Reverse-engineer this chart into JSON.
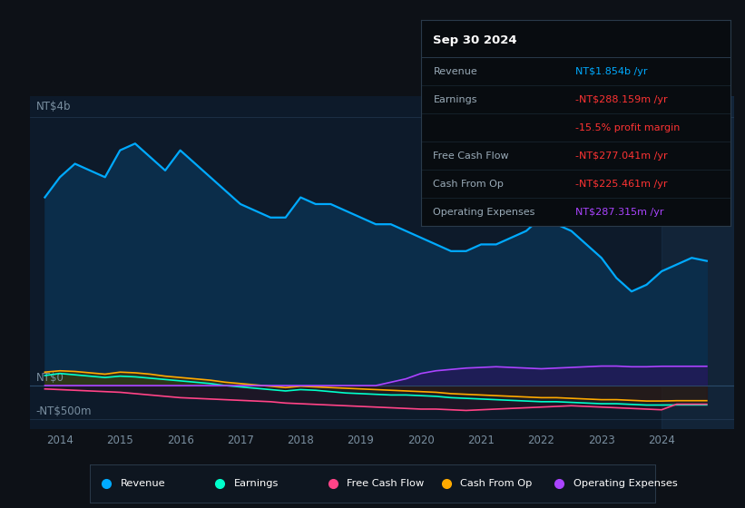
{
  "bg_color": "#0d1117",
  "plot_bg_color": "#0d1a2a",
  "years_x": [
    2013.75,
    2014.0,
    2014.25,
    2014.5,
    2014.75,
    2015.0,
    2015.25,
    2015.5,
    2015.75,
    2016.0,
    2016.25,
    2016.5,
    2016.75,
    2017.0,
    2017.25,
    2017.5,
    2017.75,
    2018.0,
    2018.25,
    2018.5,
    2018.75,
    2019.0,
    2019.25,
    2019.5,
    2019.75,
    2020.0,
    2020.25,
    2020.5,
    2020.75,
    2021.0,
    2021.25,
    2021.5,
    2021.75,
    2022.0,
    2022.25,
    2022.5,
    2022.75,
    2023.0,
    2023.25,
    2023.5,
    2023.75,
    2024.0,
    2024.25,
    2024.5,
    2024.75
  ],
  "revenue": [
    2.8,
    3.1,
    3.3,
    3.2,
    3.1,
    3.5,
    3.6,
    3.4,
    3.2,
    3.5,
    3.3,
    3.1,
    2.9,
    2.7,
    2.6,
    2.5,
    2.5,
    2.8,
    2.7,
    2.7,
    2.6,
    2.5,
    2.4,
    2.4,
    2.3,
    2.2,
    2.1,
    2.0,
    2.0,
    2.1,
    2.1,
    2.2,
    2.3,
    2.5,
    2.4,
    2.3,
    2.1,
    1.9,
    1.6,
    1.4,
    1.5,
    1.7,
    1.8,
    1.9,
    1.854
  ],
  "earnings": [
    0.15,
    0.18,
    0.16,
    0.14,
    0.12,
    0.14,
    0.13,
    0.11,
    0.09,
    0.07,
    0.05,
    0.03,
    0.0,
    -0.02,
    -0.04,
    -0.06,
    -0.08,
    -0.06,
    -0.07,
    -0.09,
    -0.11,
    -0.12,
    -0.13,
    -0.14,
    -0.14,
    -0.15,
    -0.16,
    -0.18,
    -0.19,
    -0.2,
    -0.21,
    -0.22,
    -0.23,
    -0.24,
    -0.24,
    -0.25,
    -0.26,
    -0.27,
    -0.27,
    -0.28,
    -0.29,
    -0.29,
    -0.288,
    -0.288,
    -0.288
  ],
  "free_cash_flow": [
    -0.05,
    -0.06,
    -0.07,
    -0.08,
    -0.09,
    -0.1,
    -0.12,
    -0.14,
    -0.16,
    -0.18,
    -0.19,
    -0.2,
    -0.21,
    -0.22,
    -0.23,
    -0.24,
    -0.26,
    -0.27,
    -0.28,
    -0.29,
    -0.3,
    -0.31,
    -0.32,
    -0.33,
    -0.34,
    -0.35,
    -0.35,
    -0.36,
    -0.37,
    -0.36,
    -0.35,
    -0.34,
    -0.33,
    -0.32,
    -0.31,
    -0.3,
    -0.31,
    -0.32,
    -0.33,
    -0.34,
    -0.35,
    -0.36,
    -0.277,
    -0.277,
    -0.277
  ],
  "cash_from_op": [
    0.2,
    0.22,
    0.21,
    0.19,
    0.17,
    0.2,
    0.19,
    0.17,
    0.14,
    0.12,
    0.1,
    0.08,
    0.05,
    0.03,
    0.01,
    -0.01,
    -0.03,
    -0.01,
    -0.02,
    -0.03,
    -0.04,
    -0.05,
    -0.06,
    -0.07,
    -0.08,
    -0.09,
    -0.1,
    -0.12,
    -0.13,
    -0.14,
    -0.15,
    -0.16,
    -0.17,
    -0.18,
    -0.18,
    -0.19,
    -0.2,
    -0.21,
    -0.21,
    -0.22,
    -0.23,
    -0.23,
    -0.225,
    -0.225,
    -0.225
  ],
  "operating_expenses": [
    0.0,
    0.0,
    0.0,
    0.0,
    0.0,
    0.0,
    0.0,
    0.0,
    0.0,
    0.0,
    0.0,
    0.0,
    0.0,
    0.0,
    0.0,
    0.0,
    0.0,
    0.0,
    0.0,
    0.0,
    0.0,
    0.0,
    0.0,
    0.05,
    0.1,
    0.18,
    0.22,
    0.24,
    0.26,
    0.27,
    0.28,
    0.27,
    0.26,
    0.25,
    0.26,
    0.27,
    0.28,
    0.29,
    0.29,
    0.28,
    0.28,
    0.287,
    0.287,
    0.287,
    0.287
  ],
  "revenue_color": "#00aaff",
  "earnings_color": "#00ffcc",
  "free_cash_flow_color": "#ff4488",
  "cash_from_op_color": "#ffaa00",
  "operating_expenses_color": "#aa44ff",
  "ylabel_top": "NT$4b",
  "ylabel_zero": "NT$0",
  "ylabel_neg": "-NT$500m",
  "xlim_min": 2013.5,
  "xlim_max": 2025.2,
  "ylim_min": -0.65,
  "ylim_max": 4.3,
  "gridline_top": 4.0,
  "gridline_neg": -0.5,
  "xticks": [
    2014,
    2015,
    2016,
    2017,
    2018,
    2019,
    2020,
    2021,
    2022,
    2023,
    2024
  ],
  "tooltip_title": "Sep 30 2024",
  "tooltip_rows": [
    {
      "label": "Revenue",
      "value": "NT$1.854b /yr",
      "value_color": "#00aaff"
    },
    {
      "label": "Earnings",
      "value": "-NT$288.159m /yr",
      "value_color": "#ff3333"
    },
    {
      "label": "",
      "value": "-15.5% profit margin",
      "value_color": "#ff3333"
    },
    {
      "label": "Free Cash Flow",
      "value": "-NT$277.041m /yr",
      "value_color": "#ff3333"
    },
    {
      "label": "Cash From Op",
      "value": "-NT$225.461m /yr",
      "value_color": "#ff3333"
    },
    {
      "label": "Operating Expenses",
      "value": "NT$287.315m /yr",
      "value_color": "#aa44ff"
    }
  ],
  "legend_items": [
    {
      "label": "Revenue",
      "color": "#00aaff"
    },
    {
      "label": "Earnings",
      "color": "#00ffcc"
    },
    {
      "label": "Free Cash Flow",
      "color": "#ff4488"
    },
    {
      "label": "Cash From Op",
      "color": "#ffaa00"
    },
    {
      "label": "Operating Expenses",
      "color": "#aa44ff"
    }
  ]
}
